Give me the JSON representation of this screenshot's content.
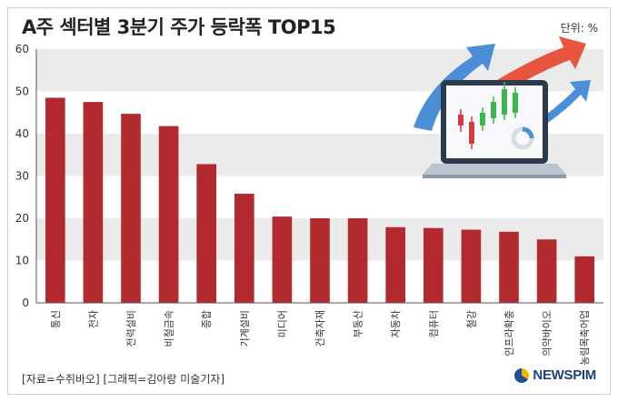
{
  "header": {
    "title": "A주 섹터별 3분기 주가 등락폭 TOP15",
    "unit": "단위: %"
  },
  "footer": {
    "source": "[자료=수쥐바오] [그래픽=김아랑 미술기자]",
    "logo": "NEWSPIM"
  },
  "colors": {
    "bar": "#b22a2e",
    "band": "#ebebeb",
    "axis": "#555555"
  },
  "illustration": {
    "icon": "laptop-candlestick-chart-with-rising-arrows-icon"
  },
  "chart_data": {
    "type": "bar",
    "title": "A주 섹터별 3분기 주가 등락폭 TOP15",
    "xlabel": "",
    "ylabel": "",
    "unit": "단위: %",
    "ylim": [
      0,
      60
    ],
    "yticks": [
      0,
      10,
      20,
      30,
      40,
      50,
      60
    ],
    "grid": "alternating horizontal bands",
    "categories": [
      "통신",
      "전자",
      "전력설비",
      "비철금속",
      "종합",
      "기계설비",
      "미디어",
      "건축자재",
      "부동산",
      "자동차",
      "컴퓨터",
      "철강",
      "인프라확충",
      "의약바이오",
      "농림목축어업"
    ],
    "values": [
      48.5,
      47.5,
      44.7,
      41.8,
      32.8,
      25.8,
      20.4,
      20.0,
      20.0,
      17.9,
      17.7,
      17.3,
      16.8,
      15.0,
      11.0
    ]
  }
}
